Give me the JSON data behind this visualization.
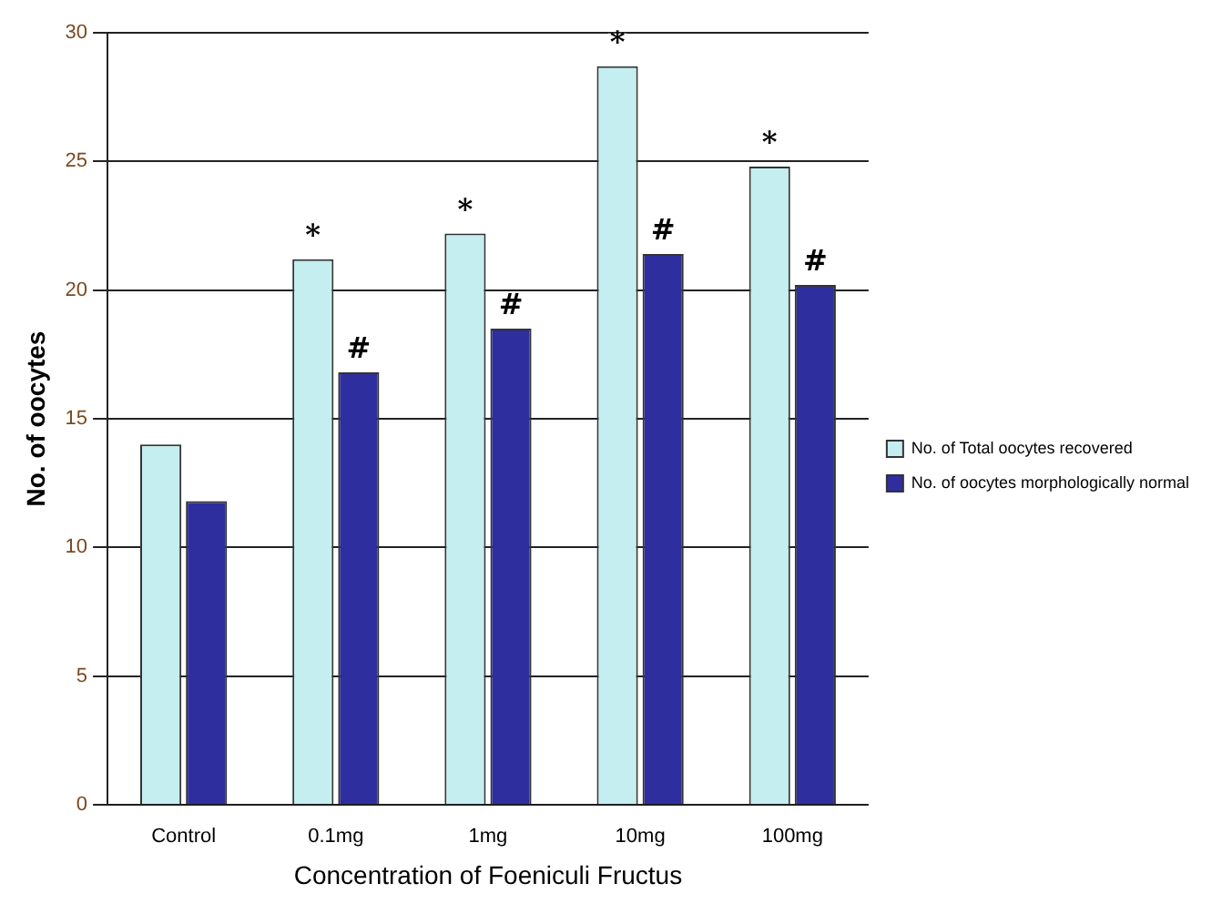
{
  "chart_data": {
    "type": "bar",
    "xlabel": "Concentration of Foeniculi Fructus",
    "ylabel": "No. of oocytes",
    "categories": [
      "Control",
      "0.1mg",
      "1mg",
      "10mg",
      "100mg"
    ],
    "series": [
      {
        "name": "No. of Total oocytes recovered",
        "color": "#c4eef0",
        "values": [
          14,
          21.2,
          22.2,
          28.7,
          24.8
        ]
      },
      {
        "name": "No. of oocytes morphologically normal",
        "color": "#2e2e9e",
        "values": [
          11.8,
          16.8,
          18.5,
          21.4,
          20.2
        ]
      }
    ],
    "ylim": [
      0,
      30
    ],
    "yticks": [
      0,
      5,
      10,
      15,
      20,
      25,
      30
    ],
    "grid": "y",
    "legend": "right",
    "annotations": [
      {
        "text": "*",
        "x": "0.1mg",
        "y": 21.2
      },
      {
        "text": "*",
        "x": "1mg",
        "y": 22.2
      },
      {
        "text": "*",
        "x": "10mg",
        "y": 28.7
      },
      {
        "text": "*",
        "x": "100mg",
        "y": 24.8
      },
      {
        "text": "#",
        "x": "0.1mg",
        "y": 16.8
      },
      {
        "text": "#",
        "x": "1mg",
        "y": 18.5
      },
      {
        "text": "#",
        "x": "10mg",
        "y": 21.4
      },
      {
        "text": "#",
        "x": "100mg",
        "y": 20.2
      }
    ]
  }
}
